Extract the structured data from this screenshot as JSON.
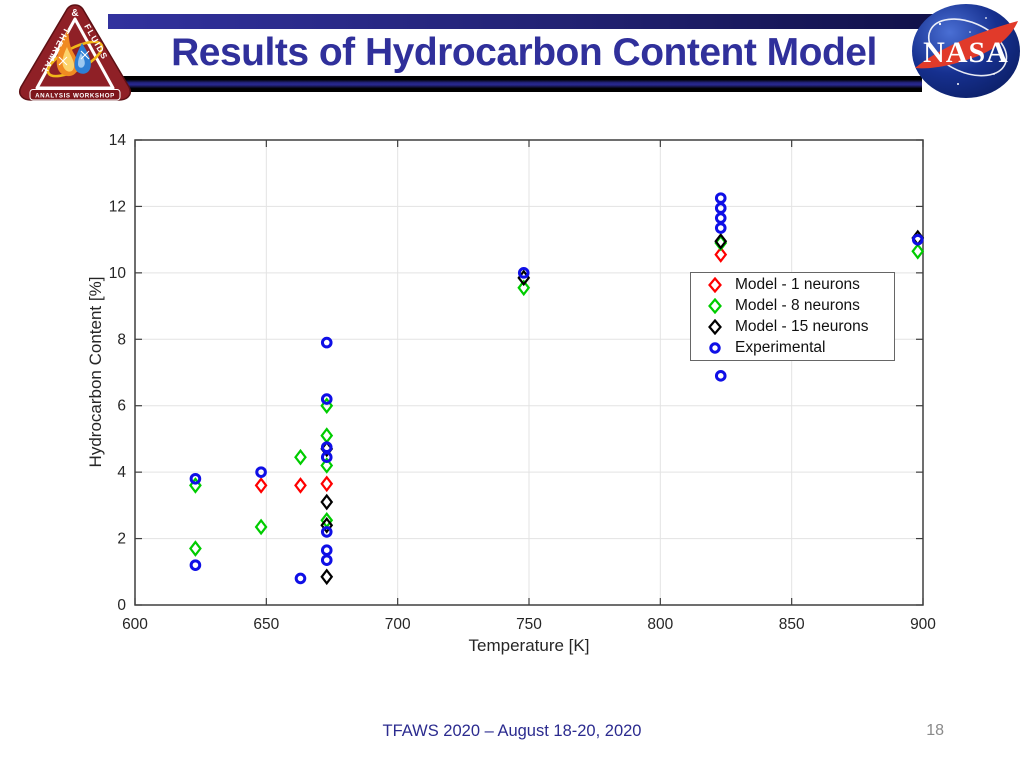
{
  "header": {
    "title": "Results of Hydrocarbon Content Model",
    "tfaws_logo": {
      "amp": "&",
      "thermal": "THERMAL",
      "fluids": "FLUIDS",
      "workshop": "ANALYSIS WORKSHOP"
    },
    "nasa_logo": {
      "text": "NASA"
    }
  },
  "footer": {
    "conference": "TFAWS 2020 – August 18-20, 2020",
    "page_number": "18"
  },
  "chart_data": {
    "type": "scatter",
    "title": "",
    "xlabel": "Temperature [K]",
    "ylabel": "Hydrocarbon Content [%]",
    "xlim": [
      600,
      900
    ],
    "ylim": [
      0,
      14
    ],
    "xticks": [
      600,
      650,
      700,
      750,
      800,
      850,
      900
    ],
    "yticks": [
      0,
      2,
      4,
      6,
      8,
      10,
      12,
      14
    ],
    "grid": true,
    "grid_color": "#e3e3e3",
    "axis_color": "#3f3f3f",
    "tick_label_color": "#262626",
    "legend_position": "right-middle",
    "series": [
      {
        "name": "Model - 1 neurons",
        "marker": "diamond",
        "color": "#ff0000",
        "points": [
          [
            648,
            3.6
          ],
          [
            663,
            3.6
          ],
          [
            673,
            3.65
          ],
          [
            823,
            10.55
          ]
        ]
      },
      {
        "name": "Model - 8 neurons",
        "marker": "diamond",
        "color": "#00cc00",
        "points": [
          [
            623,
            3.6
          ],
          [
            623,
            1.7
          ],
          [
            648,
            2.35
          ],
          [
            663,
            4.45
          ],
          [
            673,
            6.0
          ],
          [
            673,
            5.1
          ],
          [
            673,
            4.2
          ],
          [
            673,
            2.55
          ],
          [
            748,
            9.55
          ],
          [
            823,
            10.9
          ],
          [
            898,
            10.65
          ]
        ]
      },
      {
        "name": "Model - 15 neurons",
        "marker": "diamond",
        "color": "#000000",
        "points": [
          [
            673,
            4.7
          ],
          [
            673,
            3.1
          ],
          [
            673,
            2.4
          ],
          [
            673,
            0.85
          ],
          [
            748,
            9.85
          ],
          [
            823,
            10.95
          ],
          [
            898,
            11.05
          ]
        ]
      },
      {
        "name": "Experimental",
        "marker": "circle",
        "color": "#0f0fe6",
        "points": [
          [
            623,
            3.8
          ],
          [
            623,
            1.2
          ],
          [
            648,
            4.0
          ],
          [
            663,
            0.8
          ],
          [
            673,
            7.9
          ],
          [
            673,
            6.2
          ],
          [
            673,
            4.75
          ],
          [
            673,
            4.45
          ],
          [
            673,
            2.2
          ],
          [
            673,
            1.65
          ],
          [
            673,
            1.35
          ],
          [
            748,
            10.0
          ],
          [
            823,
            12.25
          ],
          [
            823,
            11.95
          ],
          [
            823,
            11.65
          ],
          [
            823,
            11.35
          ],
          [
            823,
            6.9
          ],
          [
            898,
            11.0
          ]
        ]
      }
    ]
  }
}
